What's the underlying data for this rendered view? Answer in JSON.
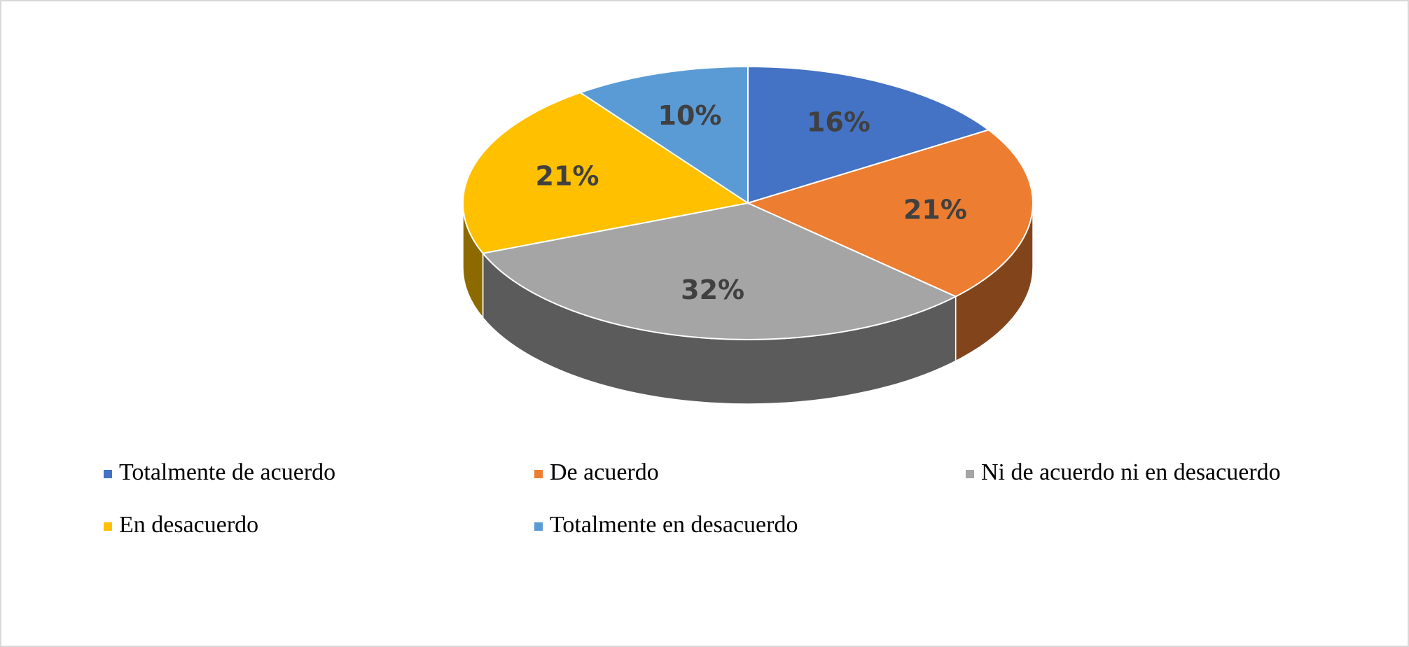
{
  "chart_data": {
    "type": "pie",
    "categories": [
      "Totalmente de acuerdo",
      "De acuerdo",
      "Ni de acuerdo ni en desacuerdo",
      "En desacuerdo",
      "Totalmente en desacuerdo"
    ],
    "values": [
      16,
      21,
      32,
      21,
      10
    ],
    "value_labels": [
      "16%",
      "21%",
      "32%",
      "21%",
      "10%"
    ],
    "colors": [
      "#4472c4",
      "#ed7d31",
      "#a5a5a5",
      "#ffc000",
      "#5b9bd5"
    ]
  }
}
